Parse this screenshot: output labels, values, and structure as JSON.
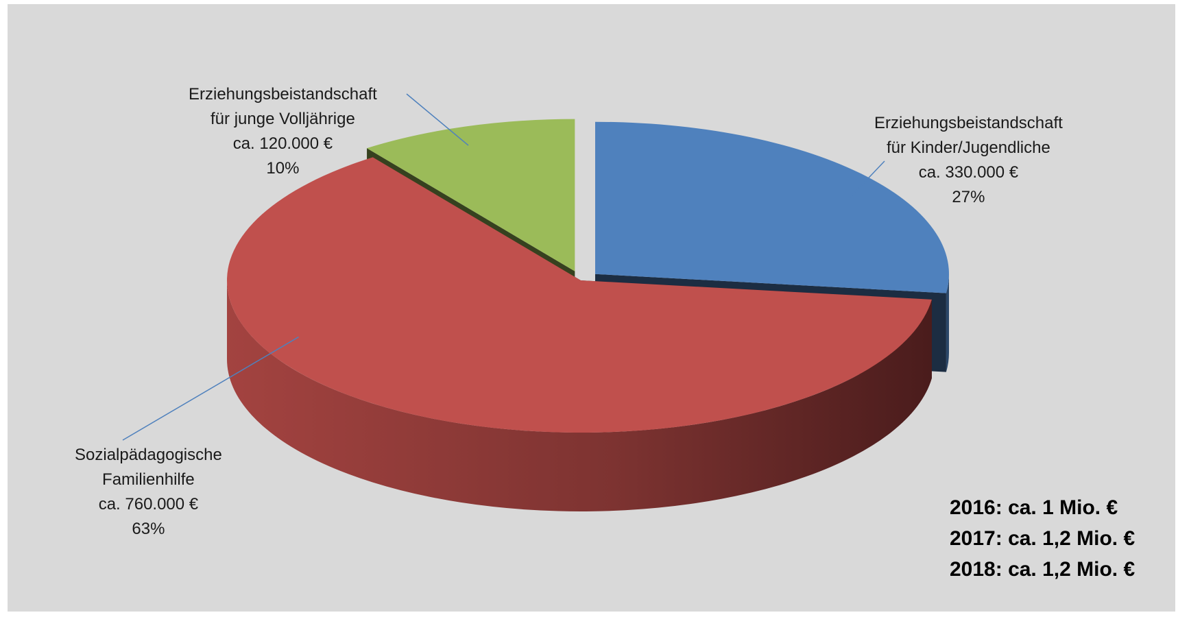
{
  "chart_data": {
    "type": "pie",
    "title": "",
    "slices": [
      {
        "lines": [
          "Erziehungsbeistandschaft",
          "für Kinder/Jugendliche",
          "ca. 330.000 €",
          "27%"
        ],
        "value": 330000,
        "percent": 27,
        "color": "#4f81bd",
        "exploded": true
      },
      {
        "lines": [
          "Sozialpädagogische",
          "Familienhilfe",
          "ca. 760.000 €",
          "63%"
        ],
        "value": 760000,
        "percent": 63,
        "color": "#c0504d",
        "exploded": false
      },
      {
        "lines": [
          "Erziehungsbeistandschaft",
          "für junge Volljährige",
          "ca. 120.000 €",
          "10%"
        ],
        "value": 120000,
        "percent": 10,
        "color": "#9bbb59",
        "exploded": true
      }
    ],
    "legend": "none",
    "annotation": [
      "2016: ca. 1 Mio. €",
      "2017: ca. 1,2 Mio. €",
      "2018: ca. 1,2 Mio. €"
    ]
  },
  "colors": {
    "background": "#d9d9d9",
    "leader_line": "#4f81bd"
  }
}
